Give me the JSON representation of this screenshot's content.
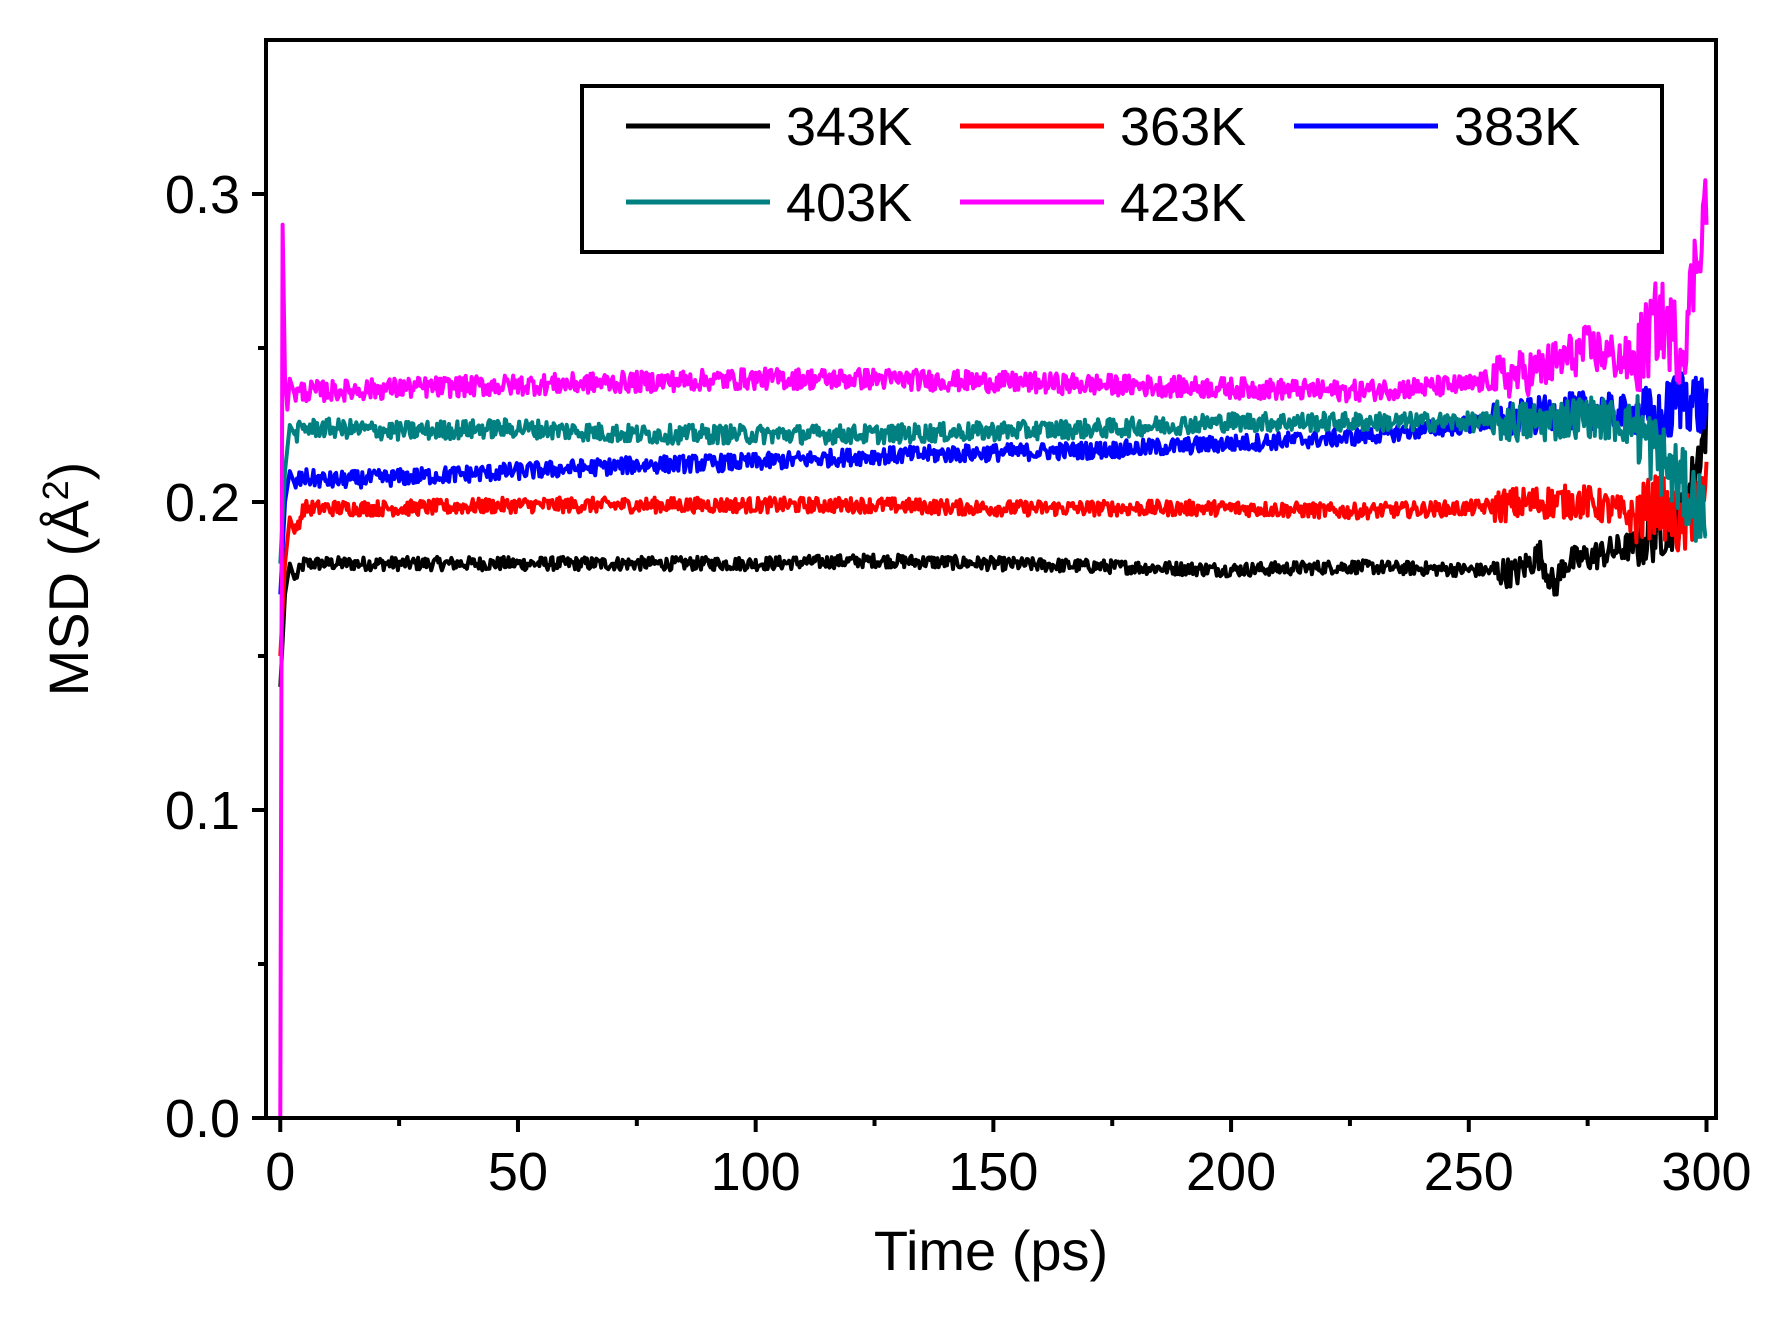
{
  "chart_data": {
    "type": "line",
    "title": "",
    "xlabel": "Time (ps)",
    "ylabel": "MSD (Å²)",
    "ylabel_parts": {
      "prefix": "MSD (",
      "symbol": "Å",
      "superscript": "2",
      "suffix": ")"
    },
    "xlim": [
      -3,
      302
    ],
    "ylim": [
      0.0,
      0.35
    ],
    "x_ticks": [
      0,
      50,
      100,
      150,
      200,
      250,
      300
    ],
    "x_tick_labels": [
      "0",
      "50",
      "100",
      "150",
      "200",
      "250",
      "300"
    ],
    "x_minor_ticks": [
      25,
      75,
      125,
      175,
      225,
      275
    ],
    "y_ticks": [
      0.0,
      0.1,
      0.2,
      0.3
    ],
    "y_tick_labels": [
      "0.0",
      "0.1",
      "0.2",
      "0.3"
    ],
    "y_minor_ticks": [
      0.05,
      0.15,
      0.25
    ],
    "grid": false,
    "legend": {
      "position": "top-right",
      "columns": 3
    },
    "series": [
      {
        "name": "343K",
        "color": "#000000",
        "x": [
          0,
          1,
          2,
          3,
          5,
          10,
          25,
          50,
          75,
          100,
          125,
          150,
          175,
          200,
          225,
          250,
          260,
          265,
          268,
          270,
          275,
          280,
          285,
          290,
          295,
          300
        ],
        "y": [
          0.14,
          0.17,
          0.18,
          0.175,
          0.18,
          0.18,
          0.18,
          0.18,
          0.18,
          0.18,
          0.181,
          0.18,
          0.179,
          0.178,
          0.179,
          0.178,
          0.177,
          0.183,
          0.172,
          0.18,
          0.182,
          0.184,
          0.186,
          0.19,
          0.195,
          0.225
        ]
      },
      {
        "name": "363K",
        "color": "#ff0000",
        "x": [
          0,
          1,
          2,
          3,
          5,
          10,
          25,
          50,
          75,
          100,
          125,
          150,
          175,
          200,
          225,
          250,
          265,
          275,
          285,
          290,
          295,
          300
        ],
        "y": [
          0.15,
          0.18,
          0.195,
          0.19,
          0.198,
          0.198,
          0.198,
          0.199,
          0.199,
          0.199,
          0.199,
          0.198,
          0.198,
          0.198,
          0.197,
          0.198,
          0.2,
          0.2,
          0.195,
          0.2,
          0.19,
          0.205
        ]
      },
      {
        "name": "383K",
        "color": "#0000ff",
        "x": [
          0,
          1,
          2,
          3,
          5,
          10,
          25,
          50,
          75,
          100,
          125,
          150,
          175,
          200,
          225,
          250,
          265,
          275,
          285,
          290,
          295,
          300
        ],
        "y": [
          0.17,
          0.2,
          0.21,
          0.206,
          0.208,
          0.207,
          0.208,
          0.21,
          0.212,
          0.213,
          0.215,
          0.216,
          0.217,
          0.219,
          0.221,
          0.225,
          0.228,
          0.23,
          0.228,
          0.225,
          0.235,
          0.23
        ]
      },
      {
        "name": "403K",
        "color": "#008080",
        "x": [
          0,
          1,
          2,
          3,
          5,
          10,
          25,
          50,
          75,
          100,
          125,
          150,
          175,
          200,
          225,
          250,
          265,
          275,
          285,
          290,
          295,
          300
        ],
        "y": [
          0.18,
          0.21,
          0.225,
          0.222,
          0.224,
          0.224,
          0.223,
          0.224,
          0.222,
          0.222,
          0.222,
          0.223,
          0.224,
          0.226,
          0.226,
          0.226,
          0.226,
          0.228,
          0.225,
          0.215,
          0.205,
          0.195
        ]
      },
      {
        "name": "423K",
        "color": "#ff00ff",
        "x": [
          0,
          0.5,
          1,
          1.5,
          2,
          3,
          5,
          10,
          25,
          50,
          75,
          100,
          125,
          150,
          175,
          200,
          225,
          250,
          265,
          275,
          285,
          290,
          295,
          300
        ],
        "y": [
          0.0,
          0.29,
          0.24,
          0.23,
          0.24,
          0.235,
          0.236,
          0.236,
          0.237,
          0.238,
          0.239,
          0.24,
          0.24,
          0.239,
          0.238,
          0.237,
          0.236,
          0.238,
          0.243,
          0.25,
          0.245,
          0.26,
          0.25,
          0.3
        ]
      }
    ]
  }
}
